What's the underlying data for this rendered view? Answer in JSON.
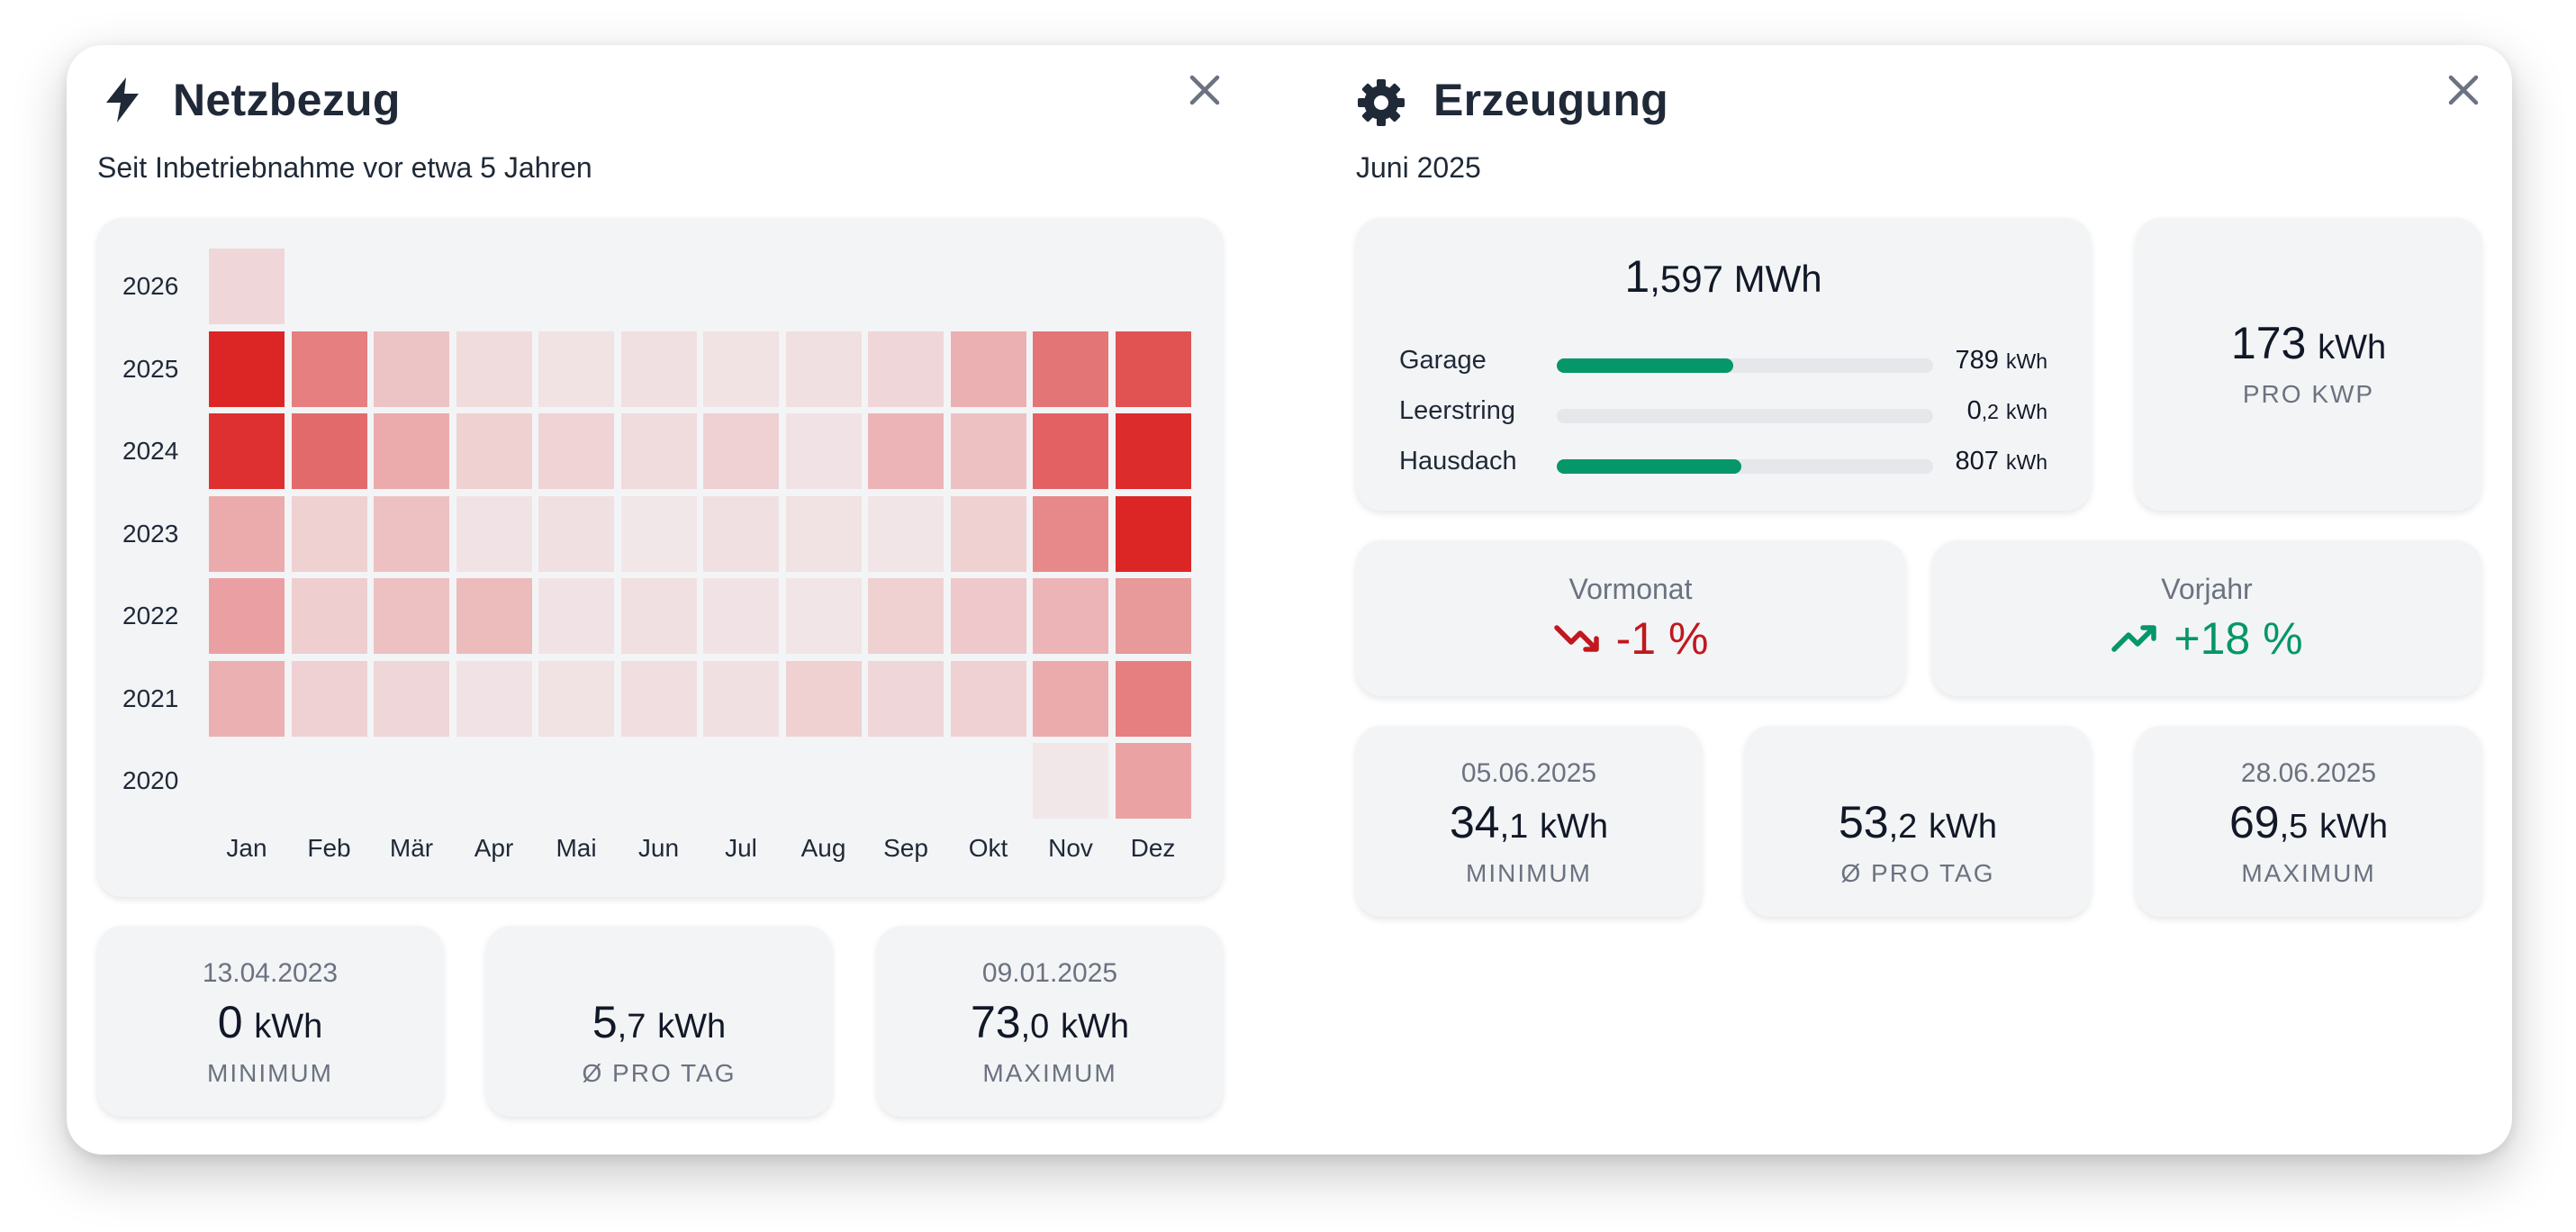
{
  "netzbezug": {
    "title": "Netzbezug",
    "subtitle": "Seit Inbetriebnahme vor etwa 5 Jahren",
    "heatmap": {
      "years": [
        "2026",
        "2025",
        "2024",
        "2023",
        "2022",
        "2021",
        "2020"
      ],
      "months": [
        "Jan",
        "Feb",
        "Mär",
        "Apr",
        "Mai",
        "Jun",
        "Jul",
        "Aug",
        "Sep",
        "Okt",
        "Nov",
        "Dez"
      ],
      "intensity": [
        [
          0.1,
          null,
          null,
          null,
          null,
          null,
          null,
          null,
          null,
          null,
          null,
          null
        ],
        [
          1.0,
          0.55,
          0.2,
          0.08,
          0.05,
          0.06,
          0.05,
          0.06,
          0.1,
          0.3,
          0.6,
          0.78
        ],
        [
          0.95,
          0.66,
          0.33,
          0.14,
          0.12,
          0.08,
          0.13,
          0.04,
          0.28,
          0.22,
          0.7,
          0.97
        ],
        [
          0.33,
          0.14,
          0.22,
          0.04,
          0.06,
          0.02,
          0.06,
          0.05,
          0.03,
          0.14,
          0.5,
          1.0
        ],
        [
          0.38,
          0.15,
          0.22,
          0.25,
          0.04,
          0.06,
          0.04,
          0.03,
          0.14,
          0.18,
          0.28,
          0.42
        ],
        [
          0.3,
          0.13,
          0.11,
          0.04,
          0.05,
          0.07,
          0.06,
          0.14,
          0.11,
          0.13,
          0.33,
          0.55
        ],
        [
          null,
          null,
          null,
          null,
          null,
          null,
          null,
          null,
          null,
          null,
          0.02,
          0.37
        ]
      ]
    },
    "stats": [
      {
        "date": "13.04.2023",
        "int": "0",
        "dec": "",
        "unit": "kWh",
        "label": "MINIMUM"
      },
      {
        "date": "",
        "int": "5",
        "dec": ",7",
        "unit": "kWh",
        "label": "Ø PRO TAG"
      },
      {
        "date": "09.01.2025",
        "int": "73",
        "dec": ",0",
        "unit": "kWh",
        "label": "MAXIMUM"
      }
    ]
  },
  "erzeugung": {
    "title": "Erzeugung",
    "subtitle": "Juni 2025",
    "total": {
      "int": "1",
      "dec": ",597",
      "unit": "MWh"
    },
    "strings": [
      {
        "name": "Garage",
        "int": "789",
        "dec": "",
        "unit": "kWh",
        "fraction": 0.47
      },
      {
        "name": "Leerstring",
        "int": "0",
        "dec": ",2",
        "unit": "kWh",
        "fraction": 0.0
      },
      {
        "name": "Hausdach",
        "int": "807",
        "dec": "",
        "unit": "kWh",
        "fraction": 0.49
      }
    ],
    "per_kwp": {
      "int": "173",
      "unit": "kWh",
      "label": "PRO KWP"
    },
    "vormonat": {
      "title": "Vormonat",
      "value": "-1 %",
      "color": "#c0181e"
    },
    "vorjahr": {
      "title": "Vorjahr",
      "value": "+18 %",
      "color": "#059669"
    },
    "stats": [
      {
        "date": "05.06.2025",
        "int": "34",
        "dec": ",1",
        "unit": "kWh",
        "label": "MINIMUM"
      },
      {
        "date": "",
        "int": "53",
        "dec": ",2",
        "unit": "kWh",
        "label": "Ø PRO TAG"
      },
      {
        "date": "28.06.2025",
        "int": "69",
        "dec": ",5",
        "unit": "kWh",
        "label": "MAXIMUM"
      }
    ]
  },
  "colors": {
    "heat": "#dc2626",
    "accent_green": "#059669",
    "accent_red": "#c0181e"
  }
}
